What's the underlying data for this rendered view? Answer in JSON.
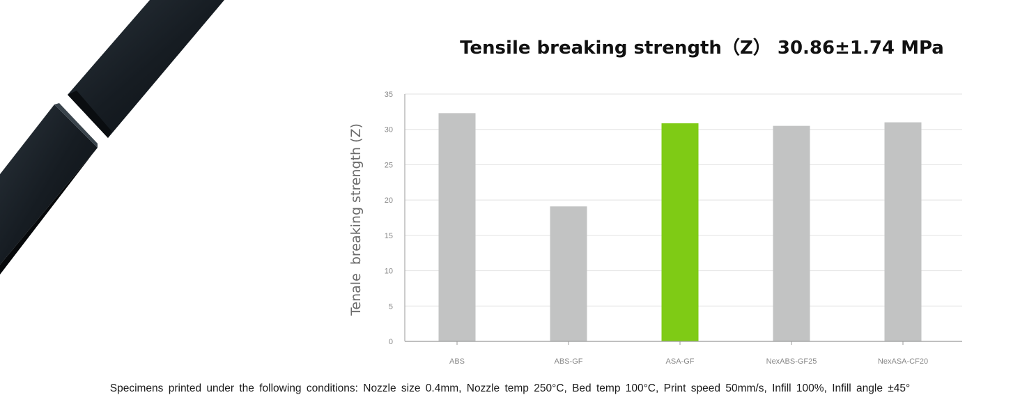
{
  "chart_data": {
    "type": "bar",
    "title": "Tensile breaking strength（Z） 30.86±1.74 MPa",
    "ylabel": "Tenale  breaking strength (Z)",
    "xlabel": "",
    "categories": [
      "ABS",
      "ABS-GF",
      "ASA-GF",
      "NexABS-GF25",
      "NexASA-CF20"
    ],
    "values": [
      32.3,
      19.1,
      30.86,
      30.5,
      31.0
    ],
    "highlight": "ASA-GF",
    "ylim": [
      0,
      35
    ],
    "yticks": [
      "0",
      "5",
      "10",
      "15",
      "20",
      "25",
      "30",
      "35"
    ],
    "grid": true,
    "colors": {
      "bar": "#c2c3c3",
      "highlight": "#7fcb15",
      "grid": "#e2e2e2",
      "axis": "#9a9a9a",
      "tick_text": "#888888"
    }
  },
  "footnote": "Specimens printed under the following conditions: Nozzle size 0.4mm,  Nozzle temp 250°C, Bed temp 100°C, Print speed 50mm/s, Infill 100%, Infill angle ±45°",
  "photo": {
    "subject": "broken-filament-specimen"
  }
}
